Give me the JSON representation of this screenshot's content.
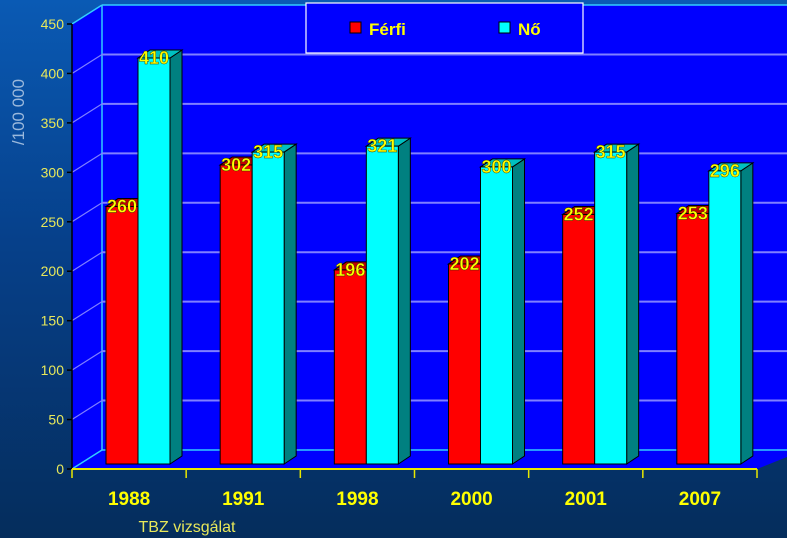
{
  "chart_data": {
    "type": "bar",
    "title": "",
    "xlabel": "TBZ vizsgálat",
    "ylabel": "/100 000",
    "ylim": [
      0,
      450
    ],
    "yticks": [
      0,
      50,
      100,
      150,
      200,
      250,
      300,
      350,
      400,
      450
    ],
    "grid": true,
    "legend_position": "top-center",
    "categories": [
      "1988",
      "1991",
      "1998",
      "2000",
      "2001",
      "2007"
    ],
    "series": [
      {
        "name": "Férfi",
        "color": "#ff0000",
        "values": [
          260,
          302,
          196,
          202,
          252,
          253
        ]
      },
      {
        "name": "Nő",
        "color": "#00ffff",
        "values": [
          410,
          315,
          321,
          300,
          315,
          296
        ]
      }
    ],
    "colors": {
      "plot_background": "#0000ff",
      "gridline": "#8080ff"
    }
  }
}
